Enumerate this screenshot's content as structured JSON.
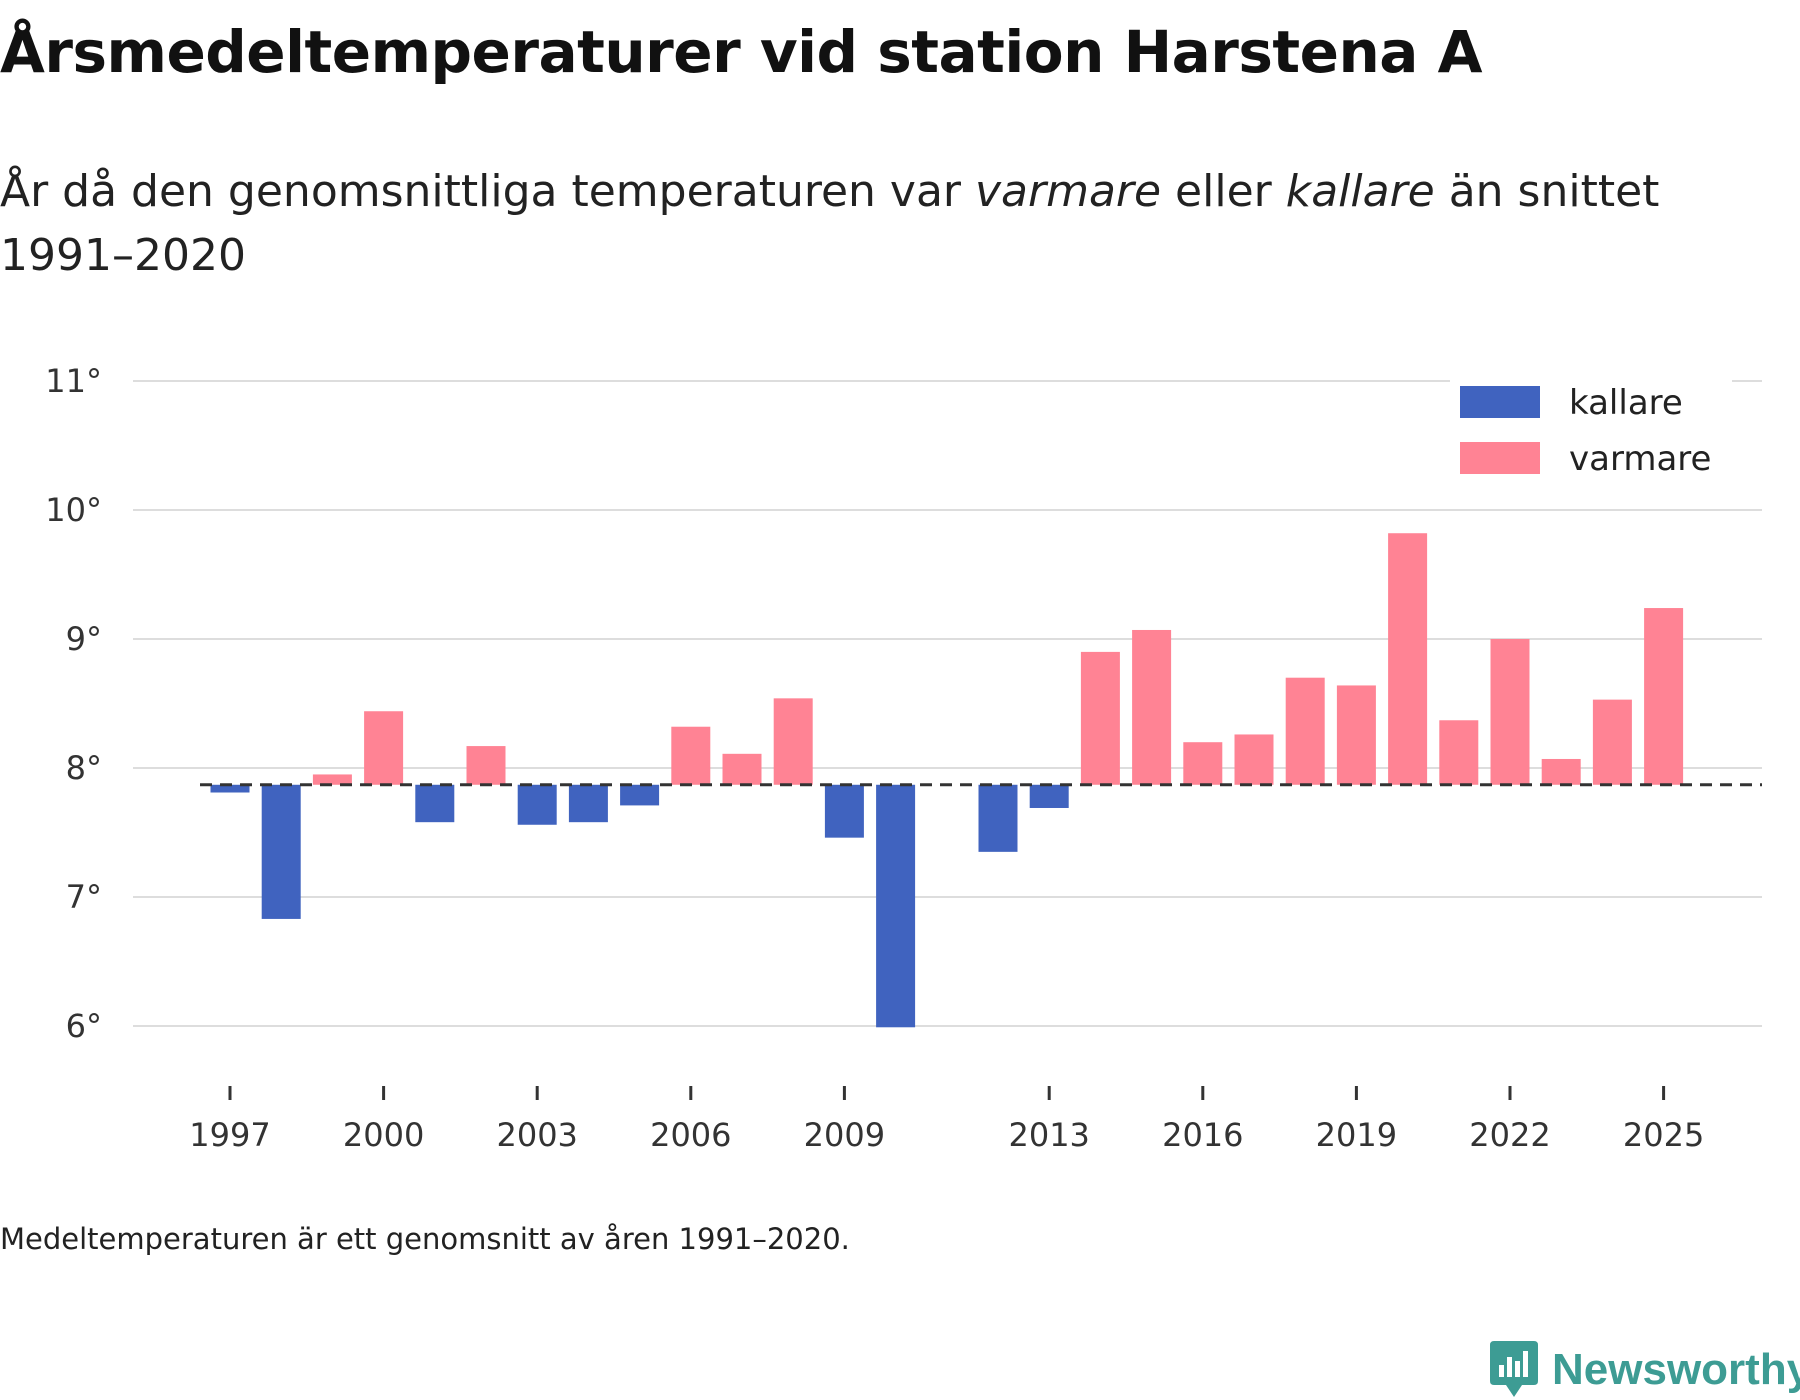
{
  "title": "Årsmedeltemperaturer vid station Harstena A",
  "subtitle": {
    "before": "År då den genomsnittliga temperaturen var ",
    "warm_word": "varmare",
    "middle": " eller ",
    "cold_word": "kallare",
    "after": " än snittet 1991–2020"
  },
  "footnote": "Medeltemperaturen är ett genomsnitt av åren 1991–2020.",
  "brand": "Newsworthy",
  "colors": {
    "cold": "#4063bf",
    "warm": "#ff8394",
    "grid": "#dddddd",
    "baseline": "#333333",
    "brand": "#3d9c94"
  },
  "chart_data": {
    "type": "bar",
    "title": "Årsmedeltemperaturer vid station Harstena A",
    "xlabel": "",
    "ylabel": "",
    "y_unit": "°",
    "ylim": [
      5.6,
      11.1
    ],
    "yticks": [
      6,
      7,
      8,
      9,
      10,
      11
    ],
    "xticks": [
      1997,
      2000,
      2003,
      2006,
      2009,
      2013,
      2016,
      2019,
      2022,
      2025
    ],
    "reference_line": {
      "value": 7.87,
      "label": "Medeltemperaturen 1991–2020",
      "style": "dashed"
    },
    "legend": [
      {
        "name": "kallare",
        "color": "#4063bf"
      },
      {
        "name": "varmare",
        "color": "#ff8394"
      }
    ],
    "legend_position": "top-right",
    "series": [
      {
        "year": 1997,
        "value": 7.81,
        "category": "kallare"
      },
      {
        "year": 1998,
        "value": 6.83,
        "category": "kallare"
      },
      {
        "year": 1999,
        "value": 7.95,
        "category": "varmare"
      },
      {
        "year": 2000,
        "value": 8.44,
        "category": "varmare"
      },
      {
        "year": 2001,
        "value": 7.58,
        "category": "kallare"
      },
      {
        "year": 2002,
        "value": 8.17,
        "category": "varmare"
      },
      {
        "year": 2003,
        "value": 7.56,
        "category": "kallare"
      },
      {
        "year": 2004,
        "value": 7.58,
        "category": "kallare"
      },
      {
        "year": 2005,
        "value": 7.71,
        "category": "kallare"
      },
      {
        "year": 2006,
        "value": 8.32,
        "category": "varmare"
      },
      {
        "year": 2007,
        "value": 8.11,
        "category": "varmare"
      },
      {
        "year": 2008,
        "value": 8.54,
        "category": "varmare"
      },
      {
        "year": 2009,
        "value": 7.46,
        "category": "kallare"
      },
      {
        "year": 2010,
        "value": 5.99,
        "category": "kallare"
      },
      {
        "year": 2012,
        "value": 7.35,
        "category": "kallare"
      },
      {
        "year": 2013,
        "value": 7.69,
        "category": "kallare"
      },
      {
        "year": 2014,
        "value": 8.9,
        "category": "varmare"
      },
      {
        "year": 2015,
        "value": 9.07,
        "category": "varmare"
      },
      {
        "year": 2016,
        "value": 8.2,
        "category": "varmare"
      },
      {
        "year": 2017,
        "value": 8.26,
        "category": "varmare"
      },
      {
        "year": 2018,
        "value": 8.7,
        "category": "varmare"
      },
      {
        "year": 2019,
        "value": 8.64,
        "category": "varmare"
      },
      {
        "year": 2020,
        "value": 9.82,
        "category": "varmare"
      },
      {
        "year": 2021,
        "value": 8.37,
        "category": "varmare"
      },
      {
        "year": 2022,
        "value": 9.0,
        "category": "varmare"
      },
      {
        "year": 2023,
        "value": 8.07,
        "category": "varmare"
      },
      {
        "year": 2024,
        "value": 8.53,
        "category": "varmare"
      },
      {
        "year": 2025,
        "value": 9.24,
        "category": "varmare"
      }
    ]
  }
}
